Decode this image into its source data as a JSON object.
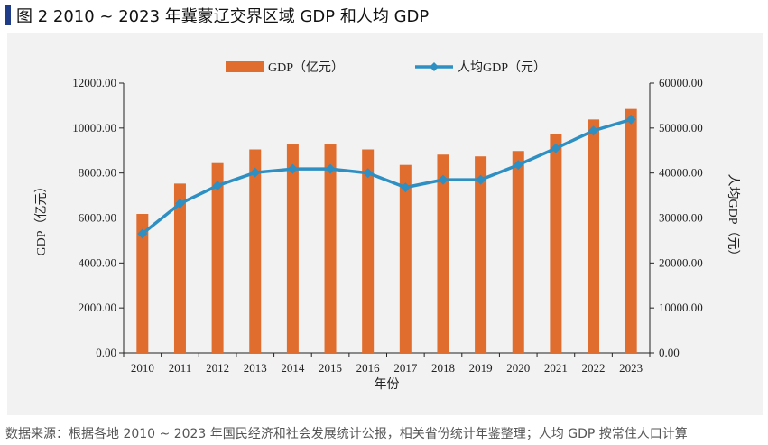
{
  "figure": {
    "title": "图 2   2010 ~ 2023 年冀蒙辽交界区域 GDP 和人均 GDP",
    "source": "数据来源：根据各地 2010 ~ 2023 年国民经济和社会发展统计公报，相关省份统计年鉴整理；人均 GDP 按常住人口计算"
  },
  "colors": {
    "bar": "#e06c2e",
    "line": "#2e8fc3",
    "panel": "#f2f2f2",
    "title_accent": "#1f3c88"
  },
  "chart_data": {
    "type": "bar",
    "categories": [
      "2010",
      "2011",
      "2012",
      "2013",
      "2014",
      "2015",
      "2016",
      "2017",
      "2018",
      "2019",
      "2020",
      "2021",
      "2022",
      "2023"
    ],
    "series": [
      {
        "name": "GDP（亿元）",
        "type": "bar",
        "axis": "left",
        "values": [
          6180,
          7530,
          8440,
          9050,
          9270,
          9270,
          9050,
          8360,
          8820,
          8740,
          8980,
          9730,
          10380,
          10850
        ]
      },
      {
        "name": "人均GDP（元）",
        "type": "line",
        "axis": "right",
        "marker": "diamond",
        "values": [
          26500,
          33200,
          37200,
          40100,
          40900,
          40900,
          40000,
          36800,
          38500,
          38500,
          41800,
          45500,
          49400,
          51900
        ]
      }
    ],
    "xlabel": "年份",
    "ylabel": "GDP（亿元）",
    "y2label": "人均GDP（元）",
    "ylim": [
      0,
      12000
    ],
    "y2lim": [
      0,
      60000
    ],
    "yticks": [
      "0.00",
      "2000.00",
      "4000.00",
      "6000.00",
      "8000.00",
      "10000.00",
      "12000.00"
    ],
    "y2ticks": [
      "0.00",
      "10000.00",
      "20000.00",
      "30000.00",
      "40000.00",
      "50000.00",
      "60000.00"
    ],
    "legend_position": "top-center",
    "grid": false
  }
}
